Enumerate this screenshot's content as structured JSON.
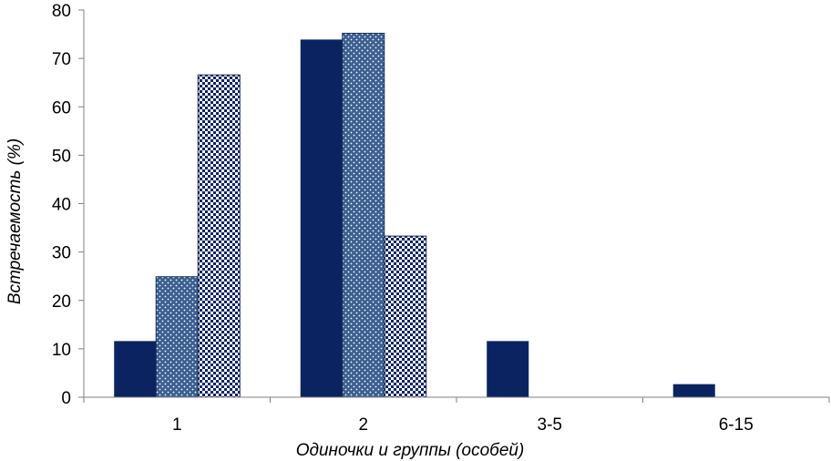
{
  "chart_data": {
    "type": "bar",
    "title": "",
    "xlabel": "Одиночки и группы (особей)",
    "ylabel": "Встречаемость (%)",
    "categories": [
      "1",
      "2",
      "3-5",
      "6-15"
    ],
    "ylim": [
      0,
      80
    ],
    "yticks": [
      0,
      10,
      20,
      30,
      40,
      50,
      60,
      70,
      80
    ],
    "grid": false,
    "legend": "none",
    "series": [
      {
        "values": [
          11.6,
          73.9,
          11.6,
          2.7
        ],
        "color": "#0b2461",
        "pattern": "solid"
      },
      {
        "values": [
          24.9,
          75.2,
          0,
          0
        ],
        "color": "#3b5f90",
        "pattern": "dots"
      },
      {
        "values": [
          66.6,
          33.3,
          0,
          0
        ],
        "color": "#0b2461",
        "pattern": "checker"
      }
    ]
  }
}
